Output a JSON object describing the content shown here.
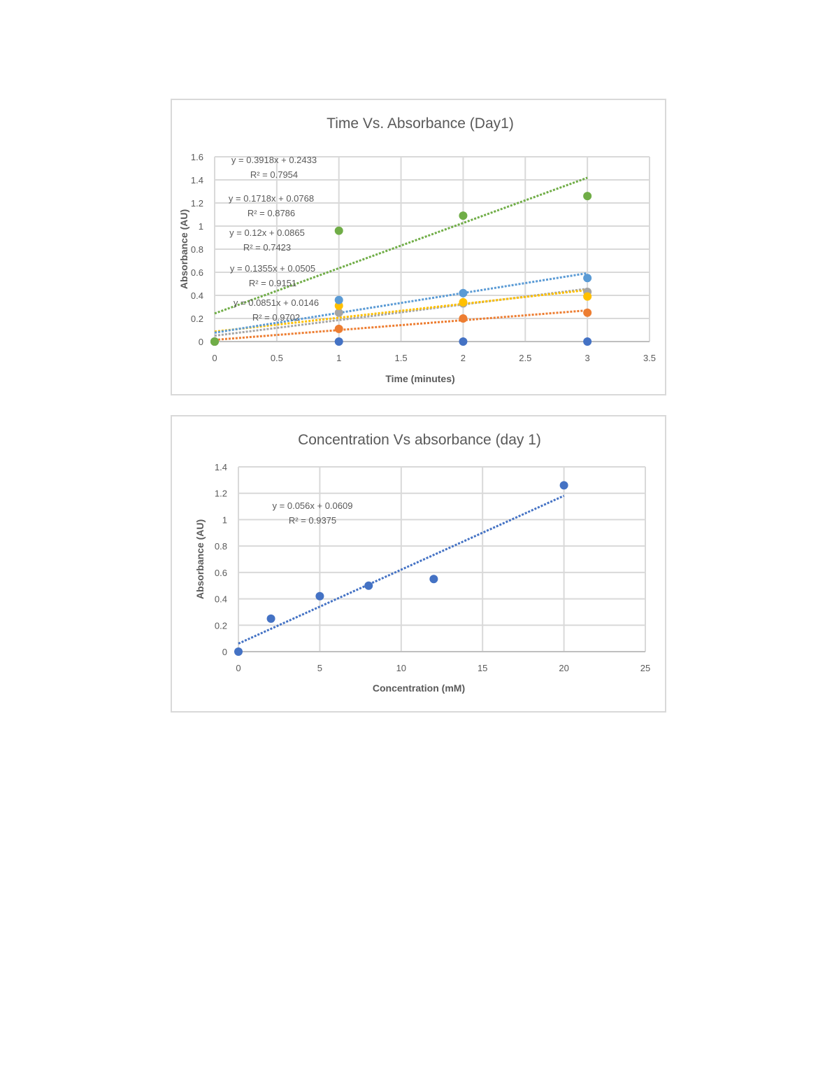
{
  "chart_data": [
    {
      "type": "scatter",
      "title": "Time Vs. Absorbance (Day1)",
      "xlabel": "Time (minutes)",
      "ylabel": "Absorbance (AU)",
      "xlim": [
        0,
        3.5
      ],
      "ylim": [
        0,
        1.6
      ],
      "x_ticks": [
        "0",
        "0.5",
        "1",
        "1.5",
        "2",
        "2.5",
        "3",
        "3.5"
      ],
      "y_ticks": [
        "0",
        "0.2",
        "0.4",
        "0.6",
        "0.8",
        "1",
        "1.2",
        "1.4",
        "1.6"
      ],
      "grid": true,
      "legend": "none",
      "x": [
        0,
        1,
        2,
        3
      ],
      "series": [
        {
          "name": "series-dark-blue",
          "color": "#4472C4",
          "values": [
            0,
            0,
            0,
            0
          ]
        },
        {
          "name": "series-orange",
          "color": "#ED7D31",
          "values": [
            0,
            0.11,
            0.2,
            0.25
          ],
          "trendline": {
            "slope": 0.0851,
            "intercept": 0.0146
          }
        },
        {
          "name": "series-gray",
          "color": "#A5A5A5",
          "values": [
            0,
            0.25,
            0.33,
            0.43
          ],
          "trendline": {
            "slope": 0.1355,
            "intercept": 0.0505
          }
        },
        {
          "name": "series-yellow",
          "color": "#FFC000",
          "values": [
            0,
            0.31,
            0.34,
            0.39
          ],
          "trendline": {
            "slope": 0.12,
            "intercept": 0.0865
          }
        },
        {
          "name": "series-light-blue",
          "color": "#5B9BD5",
          "values": [
            0,
            0.36,
            0.42,
            0.55
          ],
          "trendline": {
            "slope": 0.1718,
            "intercept": 0.0768
          }
        },
        {
          "name": "series-green",
          "color": "#70AD47",
          "values": [
            0,
            0.96,
            1.09,
            1.26
          ],
          "trendline": {
            "slope": 0.3918,
            "intercept": 0.2433
          }
        }
      ],
      "annotations": [
        {
          "eq": "y = 0.3918x + 0.2433",
          "r2": "R² = 0.7954"
        },
        {
          "eq": "y = 0.1718x + 0.0768",
          "r2": "R² = 0.8786"
        },
        {
          "eq": "y = 0.12x + 0.0865",
          "r2": "R² = 0.7423"
        },
        {
          "eq": "y = 0.1355x + 0.0505",
          "r2": "R² = 0.9151"
        },
        {
          "eq": "y = 0.0851x + 0.0146",
          "r2": "R² = 0.9702"
        }
      ]
    },
    {
      "type": "scatter",
      "title": "Concentration Vs absorbance (day 1)",
      "xlabel": "Concentration (mM)",
      "ylabel": "Absorbance (AU)",
      "xlim": [
        0,
        25
      ],
      "ylim": [
        0,
        1.4
      ],
      "x_ticks": [
        "0",
        "5",
        "10",
        "15",
        "20",
        "25"
      ],
      "y_ticks": [
        "0",
        "0.2",
        "0.4",
        "0.6",
        "0.8",
        "1",
        "1.2",
        "1.4"
      ],
      "grid": true,
      "legend": "none",
      "x": [
        0,
        2,
        5,
        8,
        12,
        20
      ],
      "series": [
        {
          "name": "absorbance",
          "color": "#4472C4",
          "values": [
            0,
            0.25,
            0.42,
            0.5,
            0.55,
            1.26
          ],
          "trendline": {
            "slope": 0.056,
            "intercept": 0.0609
          }
        }
      ],
      "annotations": [
        {
          "eq": "y = 0.056x + 0.0609",
          "r2": "R² = 0.9375"
        }
      ]
    }
  ]
}
